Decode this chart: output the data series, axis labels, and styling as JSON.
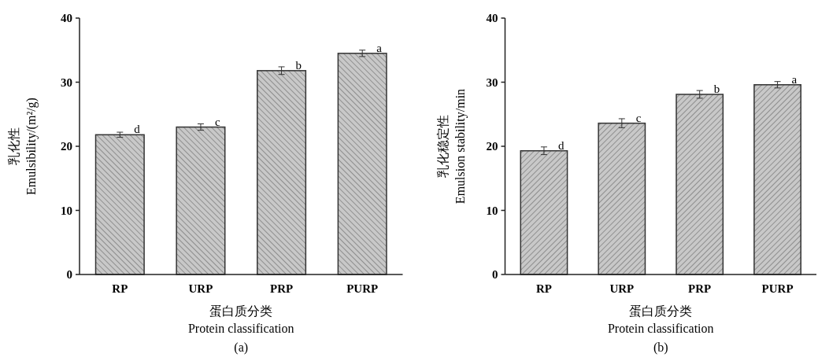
{
  "chart_data": [
    {
      "type": "bar",
      "categories": [
        "RP",
        "URP",
        "PRP",
        "PURP"
      ],
      "values": [
        21.8,
        23.0,
        31.8,
        34.5
      ],
      "errors": [
        0.4,
        0.5,
        0.6,
        0.5
      ],
      "color": "#c8c8c8",
      "ylabel": "乳化性\nEmulsibility/(m²/g)",
      "xlabel": "蛋白质分类\nProtein classification",
      "ylim": [
        0,
        40
      ],
      "yticks": [
        0,
        10,
        20,
        30,
        40
      ],
      "annotations": [
        {
          "text": "d",
          "x": "RP",
          "y": 21.8
        },
        {
          "text": "c",
          "x": "URP",
          "y": 23.0
        },
        {
          "text": "b",
          "x": "PRP",
          "y": 31.8
        },
        {
          "text": "a",
          "x": "PURP",
          "y": 34.5
        },
        "(a)"
      ]
    },
    {
      "type": "bar",
      "categories": [
        "RP",
        "URP",
        "PRP",
        "PURP"
      ],
      "values": [
        19.3,
        23.6,
        28.1,
        29.6
      ],
      "errors": [
        0.6,
        0.7,
        0.6,
        0.5
      ],
      "color": "#c8c8c8",
      "ylabel": "乳化稳定性\nEmulsion stability/min",
      "xlabel": "蛋白质分类\nProtein classification",
      "ylim": [
        0,
        40
      ],
      "yticks": [
        0,
        10,
        20,
        30,
        40
      ],
      "annotations": [
        {
          "text": "d",
          "x": "RP",
          "y": 19.3
        },
        {
          "text": "c",
          "x": "URP",
          "y": 23.6
        },
        {
          "text": "b",
          "x": "PRP",
          "y": 28.1
        },
        {
          "text": "a",
          "x": "PURP",
          "y": 29.6
        },
        "(b)"
      ]
    }
  ]
}
